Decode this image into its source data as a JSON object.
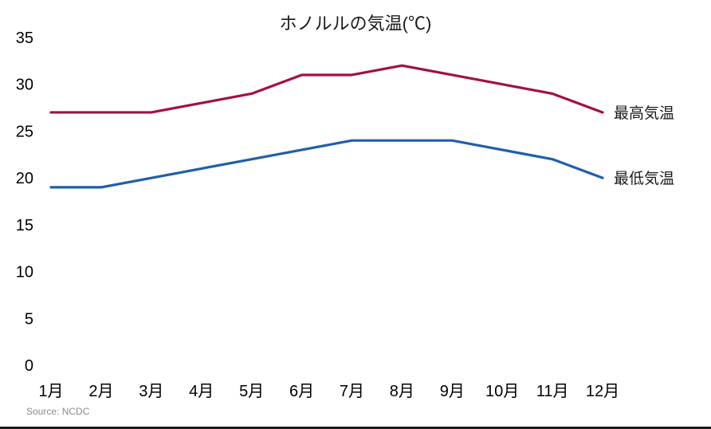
{
  "chart_data": {
    "type": "line",
    "title": "ホノルルの気温(℃)",
    "source": "Source: NCDC",
    "categories": [
      "1月",
      "2月",
      "3月",
      "4月",
      "5月",
      "6月",
      "7月",
      "8月",
      "9月",
      "10月",
      "11月",
      "12月"
    ],
    "xlabel": "",
    "ylabel": "",
    "ylim": [
      0,
      35
    ],
    "ytick_step": 5,
    "grid": false,
    "legend_position": "right-of-line-end",
    "colors": {
      "max_line": "#a3113c",
      "min_line": "#1f5fa8",
      "text": "#1a1a1a",
      "source_text": "#8a8a8a",
      "bottom_border": "#1a1a1a"
    },
    "series": [
      {
        "name": "最高気温",
        "color": "#a3113c",
        "values": [
          27,
          27,
          27,
          28,
          29,
          31,
          31,
          32,
          31,
          30,
          29,
          27
        ]
      },
      {
        "name": "最低気温",
        "color": "#1f5fa8",
        "values": [
          19,
          19,
          20,
          21,
          22,
          23,
          24,
          24,
          24,
          23,
          22,
          20
        ]
      }
    ]
  }
}
